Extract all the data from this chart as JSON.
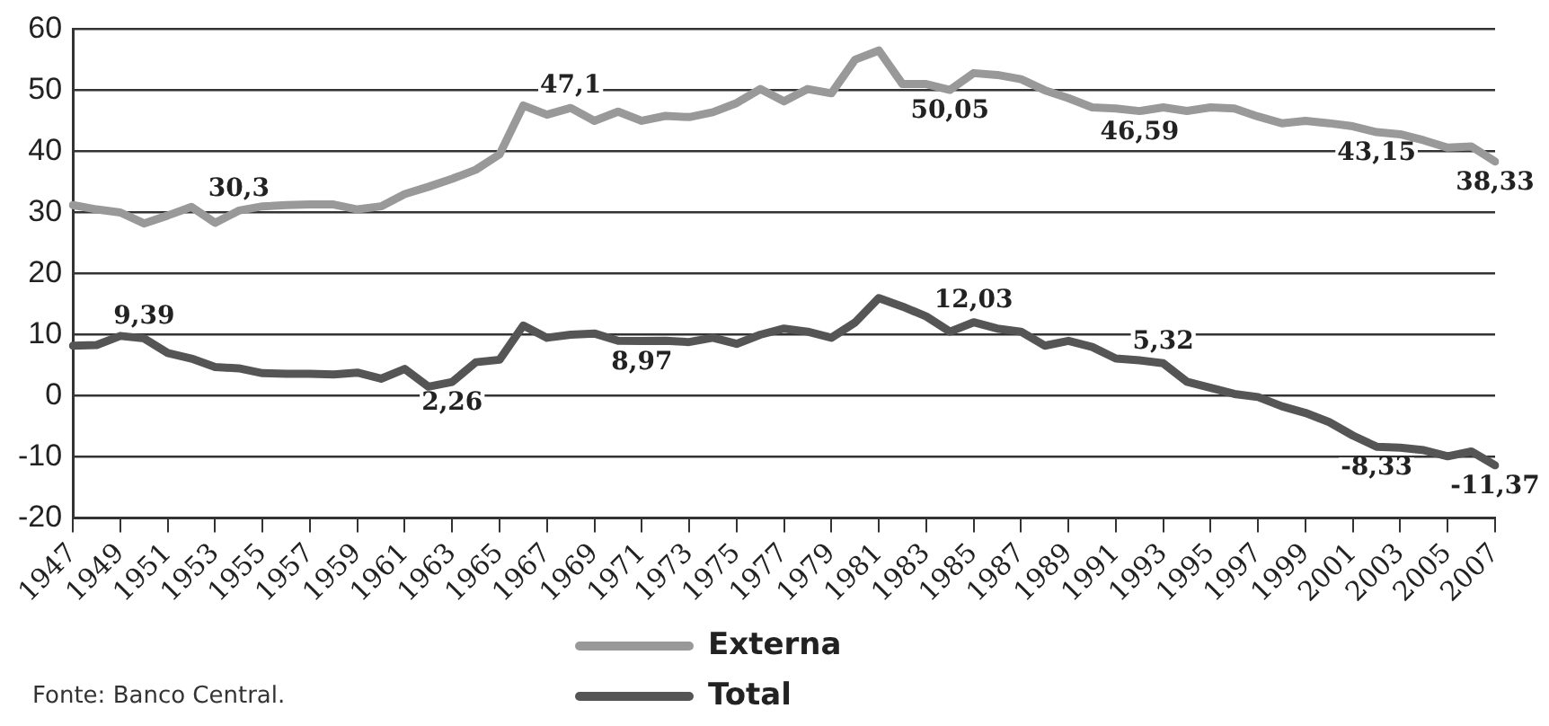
{
  "chart_data": {
    "type": "line",
    "categories": [
      "1947",
      null,
      "1949",
      null,
      "1951",
      null,
      "1953",
      null,
      "1955",
      null,
      "1957",
      null,
      "1959",
      null,
      "1961",
      null,
      "1963",
      null,
      "1965",
      null,
      "1967",
      null,
      "1969",
      null,
      "1971",
      null,
      "1973",
      null,
      "1975",
      null,
      "1977",
      null,
      "1979",
      null,
      "1981",
      null,
      "1983",
      null,
      "1985",
      null,
      "1987",
      null,
      "1989",
      null,
      "1991",
      null,
      "1993",
      null,
      "1995",
      null,
      "1997",
      null,
      "1999",
      null,
      "2001",
      null,
      "2003",
      null,
      "2005",
      null,
      "2007"
    ],
    "series": [
      {
        "name": "Externa",
        "color": "#999999",
        "values": [
          31.2,
          30.5,
          30,
          28.2,
          29.5,
          30.9,
          28.3,
          30.3,
          31,
          31.2,
          31.3,
          31.3,
          30.5,
          31,
          33,
          34.2,
          35.5,
          37,
          39.5,
          47.5,
          46,
          47.1,
          45,
          46.5,
          45,
          45.8,
          45.6,
          46.4,
          47.9,
          50.2,
          48.2,
          50.2,
          49.5,
          55,
          56.5,
          51,
          51,
          50.05,
          52.8,
          52.5,
          51.8,
          50,
          48.7,
          47.2,
          47,
          46.59,
          47.2,
          46.6,
          47.2,
          47,
          45.7,
          44.6,
          45,
          44.6,
          44.1,
          43.15,
          42.8,
          41.8,
          40.6,
          40.8,
          38.33
        ],
        "value_labels": [
          null,
          null,
          null,
          null,
          null,
          null,
          null,
          "30,3",
          null,
          null,
          null,
          null,
          null,
          null,
          null,
          null,
          null,
          null,
          null,
          null,
          null,
          "47,1",
          null,
          null,
          null,
          null,
          null,
          null,
          null,
          null,
          null,
          null,
          null,
          null,
          null,
          null,
          null,
          "50,05",
          null,
          null,
          null,
          null,
          null,
          null,
          null,
          "46,59",
          null,
          null,
          null,
          null,
          null,
          null,
          null,
          null,
          null,
          "43,15",
          null,
          null,
          null,
          null,
          "38,33"
        ]
      },
      {
        "name": "Total",
        "color": "#555555",
        "values": [
          8.2,
          8.3,
          9.8,
          9.39,
          7,
          6.1,
          4.7,
          4.5,
          3.7,
          3.6,
          3.6,
          3.5,
          3.8,
          2.8,
          4.4,
          1.5,
          2.26,
          5.5,
          5.9,
          11.5,
          9.5,
          10,
          10.2,
          9,
          8.97,
          9,
          8.8,
          9.5,
          8.5,
          10,
          11,
          10.5,
          9.5,
          12,
          16,
          14.6,
          13,
          10.5,
          12.03,
          11,
          10.5,
          8.2,
          9,
          8,
          6.1,
          5.8,
          5.32,
          2.3,
          1.3,
          0.3,
          -0.2,
          -1.7,
          -2.8,
          -4.3,
          -6.5,
          -8.33,
          -8.5,
          -8.9,
          -9.9,
          -9.1,
          -11.37
        ],
        "value_labels": [
          null,
          null,
          null,
          "9,39",
          null,
          null,
          null,
          null,
          null,
          null,
          null,
          null,
          null,
          null,
          null,
          null,
          "2,26",
          null,
          null,
          null,
          null,
          null,
          null,
          null,
          "8,97",
          null,
          null,
          null,
          null,
          null,
          null,
          null,
          null,
          null,
          null,
          null,
          null,
          null,
          "12,03",
          null,
          null,
          null,
          null,
          null,
          null,
          null,
          "5,32",
          null,
          null,
          null,
          null,
          null,
          null,
          null,
          null,
          "-8,33",
          null,
          null,
          null,
          null,
          "-11,37"
        ]
      }
    ],
    "ylim": [
      -20,
      60
    ],
    "yticks": [
      -20,
      -10,
      0,
      10,
      20,
      30,
      40,
      50,
      60
    ],
    "grid": "y",
    "legend": "bottom",
    "marker": "none",
    "line_style": "solid",
    "annotations": [
      "Fonte: Banco Central."
    ]
  }
}
